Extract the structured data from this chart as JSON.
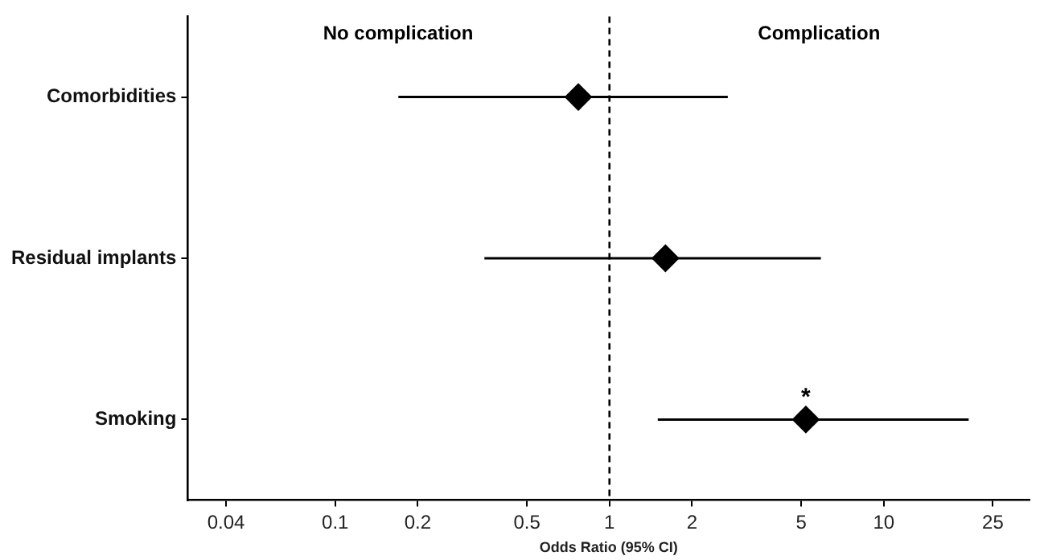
{
  "chart_data": {
    "type": "scatter",
    "orientation": "horizontal",
    "marker": "diamond",
    "color": "#000000",
    "categories": [
      "Comorbidities",
      "Residual implants",
      "Smoking"
    ],
    "values": [
      0.77,
      1.6,
      5.2
    ],
    "errors": [
      [
        0.17,
        2.7
      ],
      [
        0.35,
        5.9
      ],
      [
        1.5,
        20.4
      ]
    ],
    "log": "x",
    "xlim": [
      0.029,
      34
    ],
    "xticks": [
      0.04,
      0.1,
      0.2,
      0.5,
      1,
      2,
      5,
      10,
      25
    ],
    "xlabel": "Odds Ratio (95% CI)",
    "ref_lines": [
      {
        "axis": "x",
        "value": 1,
        "line_style": "dashed",
        "color": "#000000"
      }
    ],
    "annotations": [
      "No complication",
      "Complication",
      {
        "text": "*",
        "x": 5.2,
        "y": "Smoking"
      }
    ]
  }
}
